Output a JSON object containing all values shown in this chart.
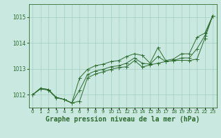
{
  "title": "Graphe pression niveau de la mer (hPa)",
  "bg_color": "#c8e8e0",
  "grid_color": "#9dc8bc",
  "line_color": "#2d6a2d",
  "hours": [
    0,
    1,
    2,
    3,
    4,
    5,
    6,
    7,
    8,
    9,
    10,
    11,
    12,
    13,
    14,
    15,
    16,
    17,
    18,
    19,
    20,
    21,
    22,
    23
  ],
  "series_min": [
    1012.0,
    1012.25,
    1012.2,
    1011.9,
    1011.82,
    1011.68,
    1011.75,
    1012.65,
    1012.8,
    1012.88,
    1012.98,
    1013.05,
    1013.08,
    1013.32,
    1013.07,
    1013.15,
    1013.22,
    1013.28,
    1013.32,
    1013.33,
    1013.32,
    1013.38,
    1014.18,
    1015.05
  ],
  "series_max": [
    1012.0,
    1012.25,
    1012.2,
    1011.9,
    1011.82,
    1011.68,
    1012.65,
    1012.98,
    1013.12,
    1013.18,
    1013.28,
    1013.32,
    1013.48,
    1013.58,
    1013.52,
    1013.22,
    1013.82,
    1013.32,
    1013.38,
    1013.58,
    1013.58,
    1014.22,
    1014.38,
    1015.05
  ],
  "series_avg": [
    1012.0,
    1012.22,
    1012.18,
    1011.88,
    1011.82,
    1011.68,
    1012.18,
    1012.78,
    1012.92,
    1012.98,
    1013.08,
    1013.12,
    1013.22,
    1013.42,
    1013.22,
    1013.18,
    1013.48,
    1013.28,
    1013.32,
    1013.42,
    1013.42,
    1013.78,
    1014.28,
    1015.05
  ],
  "ylim_min": 1011.5,
  "ylim_max": 1015.5,
  "yticks": [
    1012,
    1013,
    1014,
    1015
  ],
  "xticks": [
    0,
    1,
    2,
    3,
    4,
    5,
    6,
    7,
    8,
    9,
    10,
    11,
    12,
    13,
    14,
    15,
    16,
    17,
    18,
    19,
    20,
    21,
    22,
    23
  ],
  "title_fontsize": 7.0,
  "tick_fontsize": 5.5,
  "marker_size": 2.0,
  "line_width": 0.7
}
